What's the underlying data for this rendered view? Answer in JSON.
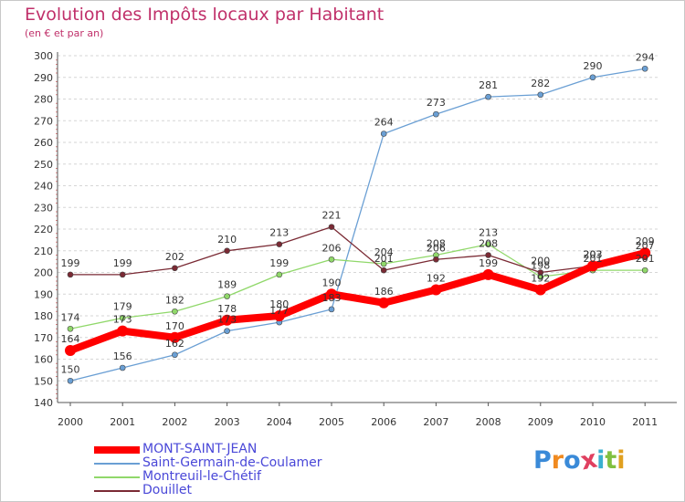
{
  "header": {
    "title": "Evolution des Impôts locaux par Habitant",
    "subtitle": "(en € et par an)"
  },
  "chart_data": {
    "type": "line",
    "title": "Evolution des Impôts locaux par Habitant",
    "subtitle": "(en € et par an)",
    "xlabel": "",
    "ylabel": "",
    "categories": [
      "2000",
      "2001",
      "2002",
      "2003",
      "2004",
      "2005",
      "2006",
      "2007",
      "2008",
      "2009",
      "2010",
      "2011"
    ],
    "ylim": [
      140,
      300
    ],
    "yticks": [
      140,
      150,
      160,
      170,
      180,
      190,
      200,
      210,
      220,
      230,
      240,
      250,
      260,
      270,
      280,
      290,
      300
    ],
    "grid": "horizontal dashed",
    "legend_position": "bottom-left",
    "series": [
      {
        "name": "MONT-SAINT-JEAN",
        "color": "#ff0000",
        "values": [
          164,
          173,
          170,
          178,
          180,
          190,
          186,
          192,
          199,
          192,
          203,
          209
        ]
      },
      {
        "name": "Saint-Germain-de-Coulamer",
        "color": "#6a9fd4",
        "values": [
          150,
          156,
          162,
          173,
          177,
          183,
          264,
          273,
          281,
          282,
          290,
          294
        ]
      },
      {
        "name": "Montreuil-le-Chétif",
        "color": "#90d86a",
        "values": [
          174,
          179,
          182,
          189,
          199,
          206,
          204,
          208,
          213,
          198,
          201,
          201
        ]
      },
      {
        "name": "Douillet",
        "color": "#7a2a34",
        "values": [
          199,
          199,
          202,
          210,
          213,
          221,
          201,
          206,
          208,
          200,
          203,
          207
        ]
      }
    ]
  },
  "logo": {
    "letters": [
      "P",
      "r",
      "o",
      "x",
      "i",
      "t",
      "i"
    ],
    "colors": [
      "#3a8ad8",
      "#f08a20",
      "#3a8ad8",
      "#e04060",
      "#3ab0d0",
      "#80c040",
      "#e0a020"
    ]
  }
}
